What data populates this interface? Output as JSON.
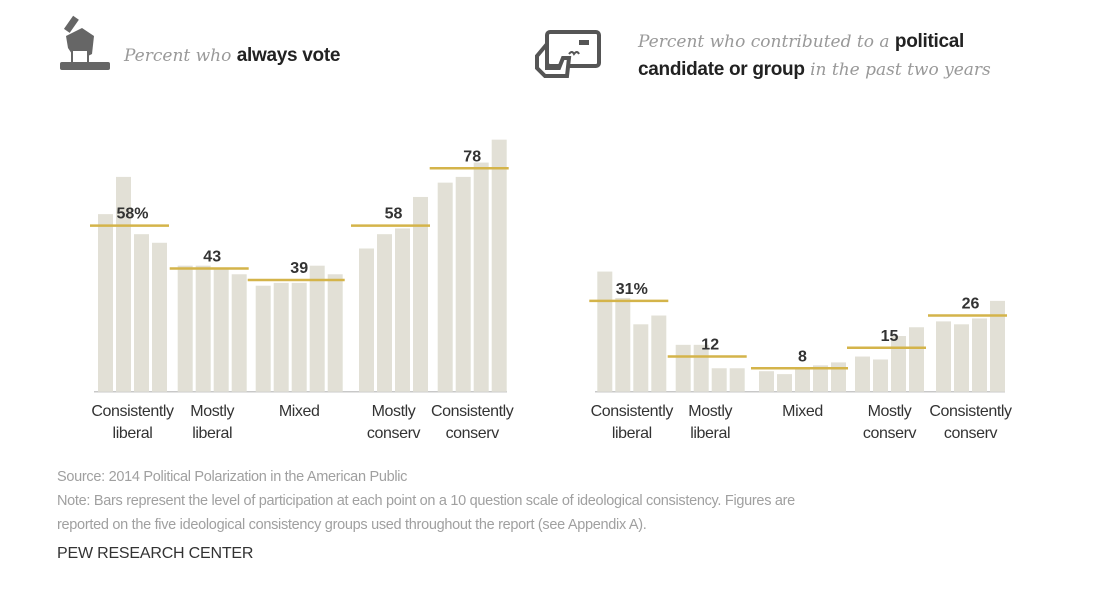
{
  "colors": {
    "bar": "#e2e0d6",
    "avg_line": "#d4b44a",
    "axis": "#c8c8c8",
    "label": "#333333",
    "footer": "#a0a0a0"
  },
  "headers": {
    "left": {
      "icon": "hand-ballot-icon",
      "italic": "Percent who ",
      "bold": "always vote"
    },
    "right": {
      "icon": "hand-check-icon",
      "italic1": "Percent who contributed to a ",
      "bold1": "political",
      "bold2": "candidate or group",
      "italic2": " in the past two years"
    }
  },
  "chart_data": [
    {
      "type": "bar",
      "title": "Percent who always vote",
      "categories": [
        [
          "Consistently",
          "liberal"
        ],
        [
          "Mostly",
          "liberal"
        ],
        [
          "Mixed"
        ],
        [
          "Mostly",
          "conserv"
        ],
        [
          "Consistently",
          "conserv"
        ]
      ],
      "group_averages": [
        58,
        43,
        39,
        58,
        78
      ],
      "group_labels": [
        "58%",
        "43",
        "39",
        "58",
        "78"
      ],
      "bar_values": [
        [
          62,
          75,
          55,
          52
        ],
        [
          44,
          44,
          43,
          41
        ],
        [
          37,
          38,
          38,
          44,
          41
        ],
        [
          50,
          55,
          57,
          68
        ],
        [
          73,
          75,
          80,
          88
        ]
      ],
      "ylim": [
        0,
        90
      ]
    },
    {
      "type": "bar",
      "title": "Percent who contributed to a political candidate or group in the past two years",
      "categories": [
        [
          "Consistently",
          "liberal"
        ],
        [
          "Mostly",
          "liberal"
        ],
        [
          "Mixed"
        ],
        [
          "Mostly",
          "conserv"
        ],
        [
          "Consistently",
          "conserv"
        ]
      ],
      "group_averages": [
        31,
        12,
        8,
        15,
        26
      ],
      "group_labels": [
        "31%",
        "12",
        "8",
        "15",
        "26"
      ],
      "bar_values": [
        [
          41,
          32,
          23,
          26
        ],
        [
          16,
          16,
          8,
          8
        ],
        [
          7,
          6,
          8,
          9,
          10
        ],
        [
          12,
          11,
          19,
          22
        ],
        [
          24,
          23,
          25,
          31
        ]
      ],
      "ylim": [
        0,
        45
      ]
    }
  ],
  "footer": {
    "source": "Source: 2014 Political Polarization in the American Public",
    "note1": "Note: Bars represent the level of participation at each point on a 10 question scale of ideological consistency. Figures are",
    "note2": "reported on the five ideological consistency groups used throughout the report (see Appendix A).",
    "brand": "PEW RESEARCH CENTER"
  }
}
